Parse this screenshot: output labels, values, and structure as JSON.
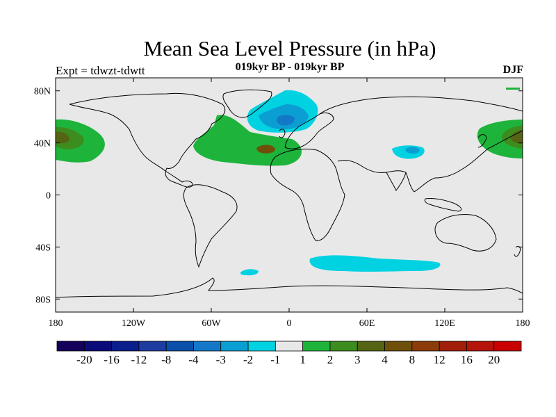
{
  "title": "Mean Sea Level Pressure (in hPa)",
  "subtitle_left": "Expt = tdwzt-tdwtt",
  "subtitle_center": "019kyr BP - 019kyr BP",
  "subtitle_right": "DJF",
  "map": {
    "lon_range": [
      -180,
      180
    ],
    "lat_range": [
      -90,
      90
    ],
    "lat_ticks": [
      {
        "value": 80,
        "label": "80N"
      },
      {
        "value": 40,
        "label": "40N"
      },
      {
        "value": 0,
        "label": "0"
      },
      {
        "value": -40,
        "label": "40S"
      },
      {
        "value": -80,
        "label": "80S"
      }
    ],
    "lon_ticks": [
      {
        "value": -180,
        "label": "180"
      },
      {
        "value": -120,
        "label": "120W"
      },
      {
        "value": -60,
        "label": "60W"
      },
      {
        "value": 0,
        "label": "0"
      },
      {
        "value": 60,
        "label": "60E"
      },
      {
        "value": 120,
        "label": "120E"
      },
      {
        "value": 180,
        "label": "180"
      }
    ],
    "background_color": "#e8e8e8"
  },
  "colorbar": {
    "colors": [
      "#14005a",
      "#0a0a78",
      "#0a1e8c",
      "#1e3ca0",
      "#0a50aa",
      "#1478c8",
      "#0a9ed2",
      "#00d2e1",
      "#e8e8e8",
      "#1eb43c",
      "#3c8c1e",
      "#556414",
      "#6e500a",
      "#8c3c0a",
      "#a01e0a",
      "#b4140a",
      "#c80000"
    ],
    "labels": [
      "-20",
      "-16",
      "-12",
      "-8",
      "-4",
      "-3",
      "-2",
      "-1",
      "1",
      "2",
      "3",
      "4",
      "8",
      "12",
      "16",
      "20"
    ]
  }
}
